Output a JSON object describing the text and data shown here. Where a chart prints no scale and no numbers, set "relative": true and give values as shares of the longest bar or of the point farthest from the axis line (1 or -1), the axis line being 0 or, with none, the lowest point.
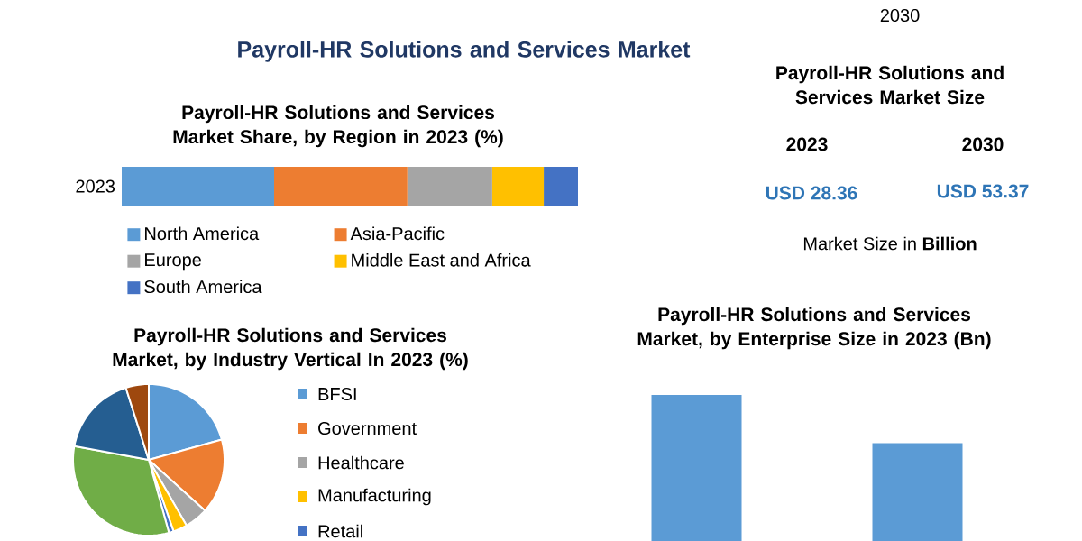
{
  "chart_data": [
    {
      "type": "other",
      "title": "Payroll-HR Solutions and Services Market"
    },
    {
      "type": "bar",
      "orientation": "horizontal",
      "stacked": true,
      "relative": true,
      "title": "Payroll-HR Solutions and Services Market Share, by Region in 2023 (%)",
      "categories": [
        "2023"
      ],
      "legend": "bottom",
      "series": [
        {
          "name": "North America",
          "color": "#5b9bd5",
          "values": [
            0.334
          ]
        },
        {
          "name": "Asia-Pacific",
          "color": "#ed7d31",
          "values": [
            0.292
          ]
        },
        {
          "name": "Europe",
          "color": "#a5a5a5",
          "values": [
            0.186
          ]
        },
        {
          "name": "Middle East and Africa",
          "color": "#ffc000",
          "values": [
            0.113
          ]
        },
        {
          "name": "South America",
          "color": "#4472c4",
          "values": [
            0.075
          ]
        }
      ]
    },
    {
      "type": "other",
      "title": "Payroll-HR Solutions and Services Market Size",
      "annotations": [
        "2030",
        "2023",
        "2030",
        "USD 28.36",
        "USD 53.37",
        "Market Size in **Billion**"
      ]
    },
    {
      "type": "pie",
      "title": "Payroll-HR Solutions and Services Market, by Industry Vertical In 2023 (%)",
      "categories": [
        "BFSI",
        "Government",
        "Healthcare",
        "Manufacturing",
        "Retail",
        null,
        null,
        null
      ],
      "values": [
        20.7,
        16,
        5,
        3,
        1,
        32.2,
        17.2,
        4.9
      ],
      "colors": [
        "#5b9bd5",
        "#ed7d31",
        "#a5a5a5",
        "#ffc000",
        "#4472c4",
        "#70ad47",
        "#255e91",
        "#9e480e"
      ],
      "legend": "right"
    },
    {
      "type": "bar",
      "relative": true,
      "title": "Payroll-HR Solutions and Services Market, by Enterprise Size in 2023 (Bn)",
      "categories": [
        null,
        null
      ],
      "values": [
        1,
        0.67
      ],
      "color": "#5b9bd5"
    }
  ]
}
